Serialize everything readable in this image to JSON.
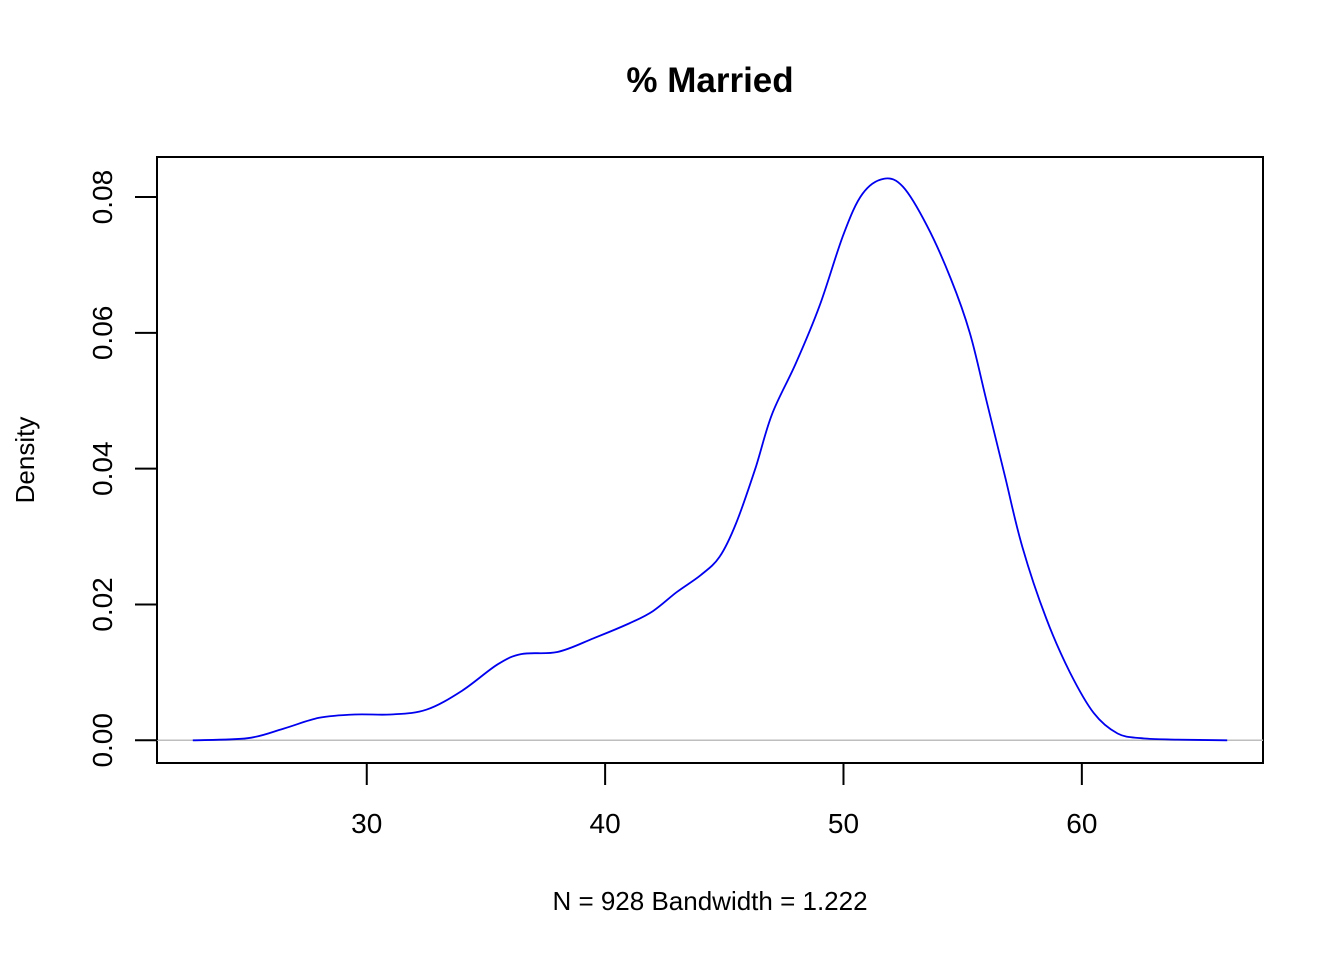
{
  "chart_data": {
    "type": "line",
    "title": "% Married",
    "xlabel": "N = 928   Bandwidth = 1.222",
    "ylabel": "Density",
    "xlim": [
      21.2,
      67.6
    ],
    "ylim": [
      -0.00335,
      0.0859
    ],
    "x_ticks": [
      30,
      40,
      50,
      60
    ],
    "x_tick_labels": [
      "30",
      "40",
      "50",
      "60"
    ],
    "y_ticks": [
      0,
      0.02,
      0.04,
      0.06,
      0.08
    ],
    "y_tick_labels": [
      "0.00",
      "0.02",
      "0.04",
      "0.06",
      "0.08"
    ],
    "baseline": 0,
    "grid": false,
    "legend": "none",
    "colors": {
      "line": "#0000ee",
      "baseline": "#bebebe",
      "axes": "#000000"
    },
    "series": [
      {
        "x": [
          22.7,
          25.0,
          26.5,
          28.0,
          29.5,
          31.0,
          32.5,
          34.0,
          35.5,
          36.5,
          38.0,
          39.5,
          41.0,
          42.0,
          43.0,
          44.0,
          44.8,
          45.5,
          46.3,
          47.0,
          48.0,
          49.0,
          50.0,
          50.8,
          51.7,
          52.5,
          53.5,
          54.5,
          55.3,
          56.0,
          56.8,
          57.5,
          58.5,
          59.5,
          60.5,
          61.5,
          62.5,
          64.0,
          66.1
        ],
        "y": [
          0.0,
          0.0003,
          0.0017,
          0.0033,
          0.0038,
          0.0038,
          0.0045,
          0.0073,
          0.0112,
          0.0127,
          0.013,
          0.015,
          0.0172,
          0.019,
          0.0218,
          0.0243,
          0.027,
          0.032,
          0.04,
          0.048,
          0.0555,
          0.064,
          0.0745,
          0.0805,
          0.0827,
          0.0815,
          0.0758,
          0.068,
          0.06,
          0.05,
          0.0385,
          0.0285,
          0.018,
          0.01,
          0.004,
          0.001,
          0.0003,
          0.0001,
          0.0
        ]
      }
    ]
  }
}
